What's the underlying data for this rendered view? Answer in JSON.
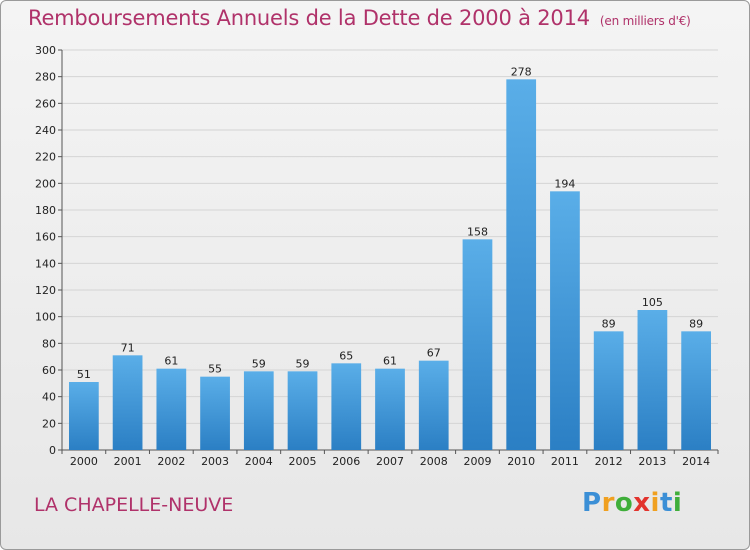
{
  "chart_data": {
    "type": "bar",
    "title": "Remboursements Annuels de la Dette de 2000 à 2014",
    "title_unit": "(en milliers d'€)",
    "categories": [
      "2000",
      "2001",
      "2002",
      "2003",
      "2004",
      "2005",
      "2006",
      "2007",
      "2008",
      "2009",
      "2010",
      "2011",
      "2012",
      "2013",
      "2014"
    ],
    "values": [
      51,
      71,
      61,
      55,
      59,
      59,
      65,
      61,
      67,
      158,
      278,
      194,
      89,
      105,
      89
    ],
    "ylim": [
      0,
      300
    ],
    "yticks": [
      0,
      20,
      40,
      60,
      80,
      100,
      120,
      140,
      160,
      180,
      200,
      220,
      240,
      260,
      280,
      300
    ],
    "grid": true,
    "colors": {
      "bar_top": "#5aaee8",
      "bar_bottom": "#2b7fc4",
      "title": "#b0326a",
      "grid": "#d4d4d4"
    }
  },
  "footer": {
    "commune": "LA CHAPELLE-NEUVE"
  },
  "logo": {
    "text": "Proxiti",
    "letters": [
      {
        "ch": "P",
        "color": "#3b8fd6"
      },
      {
        "ch": "r",
        "color": "#f0a020"
      },
      {
        "ch": "o",
        "color": "#3fae3a"
      },
      {
        "ch": "x",
        "color": "#e2332d"
      },
      {
        "ch": "i",
        "color": "#f0a020"
      },
      {
        "ch": "t",
        "color": "#3b8fd6"
      },
      {
        "ch": "i",
        "color": "#3fae3a"
      }
    ]
  }
}
